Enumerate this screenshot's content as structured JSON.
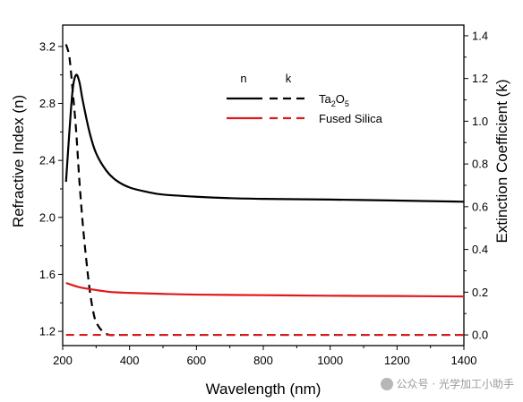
{
  "chart_data": {
    "type": "line",
    "xlabel": "Wavelength (nm)",
    "ylabel_left": "Refractive Index (n)",
    "ylabel_right": "Extinction Coefficient (k)",
    "xlim": [
      200,
      1400
    ],
    "ylim_left": [
      1.1,
      3.35
    ],
    "ylim_right": [
      -0.05,
      1.45
    ],
    "x_ticks": [
      "200",
      "400",
      "600",
      "800",
      "1000",
      "1200",
      "1400"
    ],
    "y_left_ticks": [
      "1.2",
      "1.6",
      "2.0",
      "2.4",
      "2.8",
      "3.2"
    ],
    "y_right_ticks": [
      "0.0",
      "0.2",
      "0.4",
      "0.6",
      "0.8",
      "1.0",
      "1.2",
      "1.4"
    ],
    "legend": {
      "header_n": "n",
      "header_k": "k",
      "entries": [
        {
          "label_main": "Ta",
          "sub1": "2",
          "mid": "O",
          "sub2": "5",
          "color": "#000000"
        },
        {
          "label_main": "Fused Silica",
          "color": "#e0191b"
        }
      ]
    },
    "series": [
      {
        "material": "Ta2O5",
        "quantity": "n",
        "axis": "left",
        "color": "#000000",
        "dash": "solid",
        "x": [
          210,
          220,
          230,
          240,
          250,
          260,
          280,
          300,
          330,
          360,
          400,
          450,
          500,
          600,
          700,
          800,
          1000,
          1200,
          1400
        ],
        "y": [
          2.25,
          2.6,
          2.9,
          3.0,
          2.95,
          2.82,
          2.6,
          2.45,
          2.33,
          2.26,
          2.21,
          2.18,
          2.16,
          2.145,
          2.135,
          2.13,
          2.125,
          2.118,
          2.11
        ]
      },
      {
        "material": "Ta2O5",
        "quantity": "k",
        "axis": "right",
        "color": "#000000",
        "dash": "dashed",
        "x": [
          210,
          220,
          230,
          240,
          250,
          260,
          270,
          280,
          290,
          300,
          320,
          340,
          360,
          400,
          600,
          800,
          1000,
          1200,
          1400
        ],
        "y": [
          1.36,
          1.3,
          1.14,
          0.96,
          0.72,
          0.52,
          0.36,
          0.22,
          0.12,
          0.06,
          0.015,
          0.0,
          0.0,
          0.0,
          0.0,
          0.0,
          0.0,
          0.0,
          0.0
        ]
      },
      {
        "material": "Fused Silica",
        "quantity": "n",
        "axis": "left",
        "color": "#e0191b",
        "dash": "solid",
        "x": [
          210,
          250,
          300,
          350,
          400,
          500,
          600,
          800,
          1000,
          1200,
          1400
        ],
        "y": [
          1.54,
          1.51,
          1.49,
          1.475,
          1.47,
          1.463,
          1.458,
          1.454,
          1.45,
          1.448,
          1.445
        ]
      },
      {
        "material": "Fused Silica",
        "quantity": "k",
        "axis": "right",
        "color": "#e0191b",
        "dash": "dashed",
        "x": [
          210,
          400,
          600,
          800,
          1000,
          1200,
          1400
        ],
        "y": [
          0.0,
          0.0,
          0.0,
          0.0,
          0.0,
          0.0,
          0.0
        ]
      }
    ]
  },
  "watermark": "公众号 · 光学加工小助手"
}
